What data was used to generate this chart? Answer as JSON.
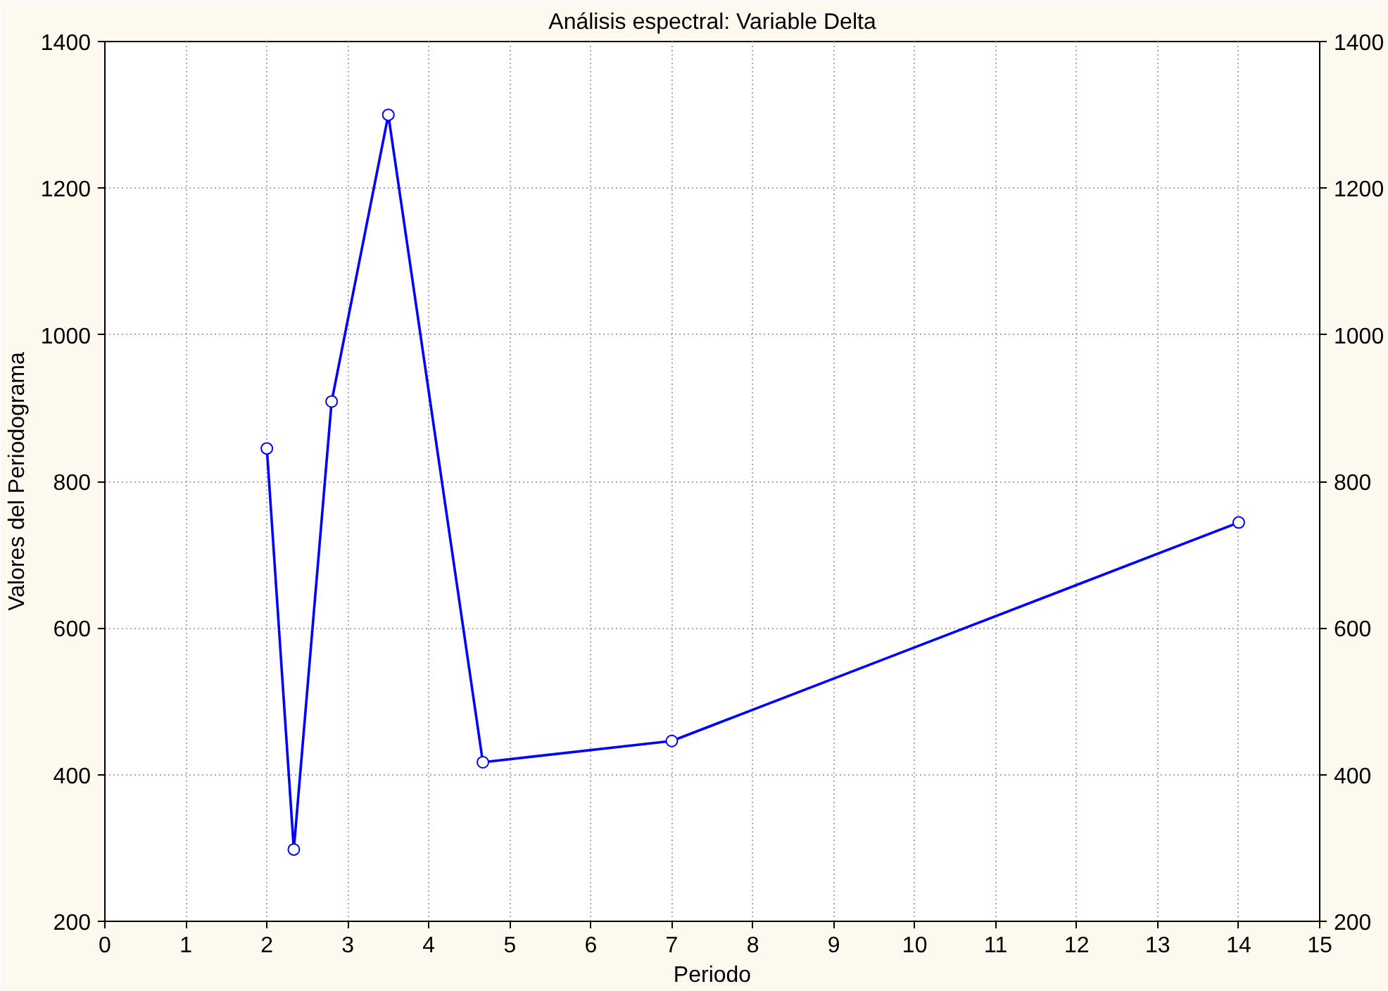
{
  "chart_data": {
    "type": "line",
    "title": "Análisis espectral: Variable Delta",
    "xlabel": "Periodo",
    "ylabel": "Valores del Periodograma",
    "x": [
      2,
      2.333,
      2.8,
      3.5,
      4.667,
      7,
      14
    ],
    "series": [
      {
        "color": "#0000ff",
        "values": [
          845,
          298,
          909,
          1300,
          417,
          446,
          744
        ]
      }
    ],
    "xlim": [
      0,
      15
    ],
    "xticks": [
      0,
      1,
      2,
      3,
      4,
      5,
      6,
      7,
      8,
      9,
      10,
      11,
      12,
      13,
      14,
      15
    ],
    "ylim": [
      200,
      1400
    ],
    "yticks": [
      200,
      400,
      600,
      800,
      1000,
      1200,
      1400
    ],
    "y2lim": [
      200,
      1400
    ],
    "y2ticks": [
      200,
      400,
      600,
      800,
      1000,
      1200,
      1400
    ],
    "grid": true,
    "marker": "circle",
    "line_style": "solid"
  }
}
